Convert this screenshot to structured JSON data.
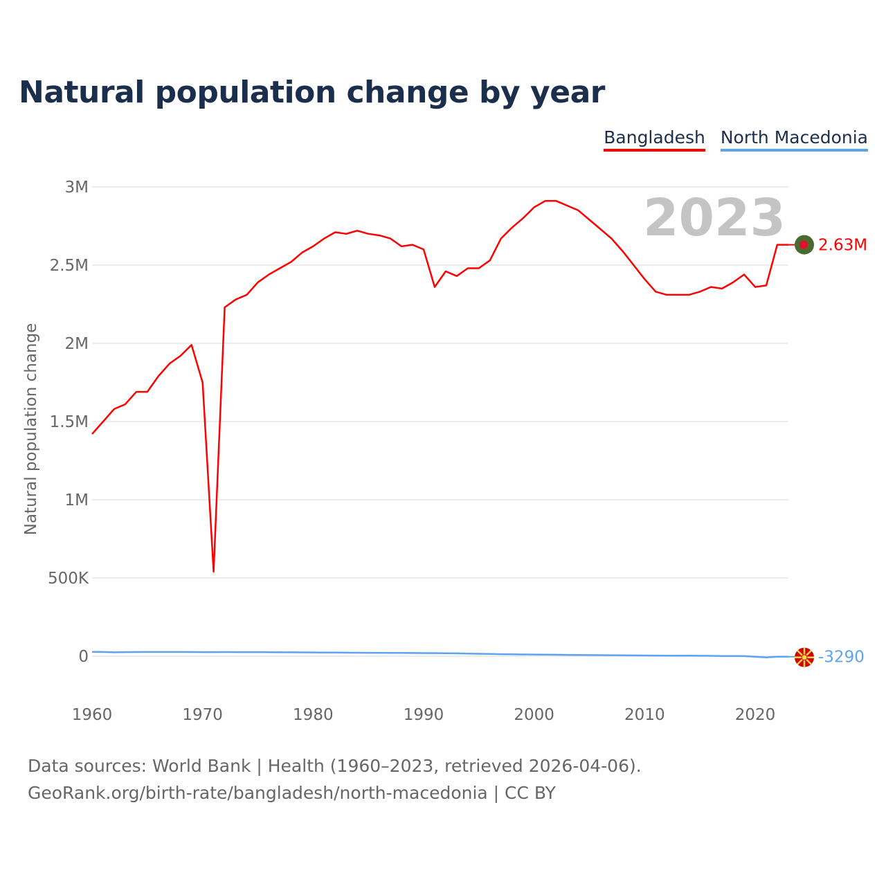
{
  "title": "Natural population change by year",
  "legend": [
    {
      "label": "Bangladesh",
      "color": "#ff0000"
    },
    {
      "label": "North Macedonia",
      "color": "#5ea3ee"
    }
  ],
  "year_watermark": "2023",
  "footer": {
    "line1": "Data sources: World Bank | Health (1960–2023, retrieved 2026-04-06).",
    "line2": "GeoRank.org/birth-rate/bangladesh/north-macedonia | CC BY"
  },
  "chart_data": {
    "type": "line",
    "title": "Natural population change by year",
    "xlabel": "",
    "ylabel": "Natural population change",
    "xlim": [
      1960,
      2023
    ],
    "ylim": [
      -100000,
      3000000
    ],
    "grid": true,
    "legend_position": "top-right",
    "y_ticks": [
      {
        "v": 0,
        "label": "0"
      },
      {
        "v": 500000,
        "label": "500K"
      },
      {
        "v": 1000000,
        "label": "1M"
      },
      {
        "v": 1500000,
        "label": "1.5M"
      },
      {
        "v": 2000000,
        "label": "2M"
      },
      {
        "v": 2500000,
        "label": "2.5M"
      },
      {
        "v": 3000000,
        "label": "3M"
      }
    ],
    "x_ticks": [
      {
        "v": 1960,
        "label": "1960"
      },
      {
        "v": 1970,
        "label": "1970"
      },
      {
        "v": 1980,
        "label": "1980"
      },
      {
        "v": 1990,
        "label": "1990"
      },
      {
        "v": 2000,
        "label": "2000"
      },
      {
        "v": 2010,
        "label": "2010"
      },
      {
        "v": 2020,
        "label": "2020"
      }
    ],
    "x_start": 1960,
    "series": [
      {
        "name": "Bangladesh",
        "color": "#ff0000",
        "end_label": "2.63M",
        "values": [
          1420000,
          1500000,
          1580000,
          1610000,
          1690000,
          1690000,
          1790000,
          1870000,
          1920000,
          1990000,
          1750000,
          540000,
          2230000,
          2280000,
          2310000,
          2390000,
          2440000,
          2480000,
          2520000,
          2580000,
          2620000,
          2670000,
          2710000,
          2700000,
          2720000,
          2700000,
          2690000,
          2670000,
          2620000,
          2630000,
          2600000,
          2360000,
          2460000,
          2430000,
          2480000,
          2480000,
          2530000,
          2670000,
          2740000,
          2800000,
          2870000,
          2910000,
          2910000,
          2880000,
          2850000,
          2790000,
          2730000,
          2670000,
          2590000,
          2500000,
          2410000,
          2330000,
          2310000,
          2310000,
          2310000,
          2330000,
          2360000,
          2350000,
          2390000,
          2440000,
          2360000,
          2370000,
          2630000,
          2630000
        ]
      },
      {
        "name": "North Macedonia",
        "color": "#5ea3ee",
        "end_label": "-3290",
        "values": [
          28000,
          27000,
          25000,
          26000,
          26500,
          27000,
          27000,
          27000,
          27000,
          26500,
          26000,
          26000,
          26500,
          26000,
          26000,
          26000,
          25500,
          25000,
          25000,
          24500,
          24000,
          23500,
          23000,
          22500,
          22000,
          21500,
          21500,
          21000,
          21000,
          20500,
          20000,
          19500,
          19000,
          18000,
          17000,
          15500,
          14000,
          13000,
          12000,
          11000,
          10500,
          10000,
          9500,
          8500,
          7500,
          7000,
          6500,
          6000,
          5500,
          5000,
          4500,
          4000,
          3500,
          3500,
          3000,
          2500,
          2000,
          1500,
          1000,
          500,
          -3000,
          -8000,
          -3500,
          -3290
        ]
      }
    ]
  }
}
